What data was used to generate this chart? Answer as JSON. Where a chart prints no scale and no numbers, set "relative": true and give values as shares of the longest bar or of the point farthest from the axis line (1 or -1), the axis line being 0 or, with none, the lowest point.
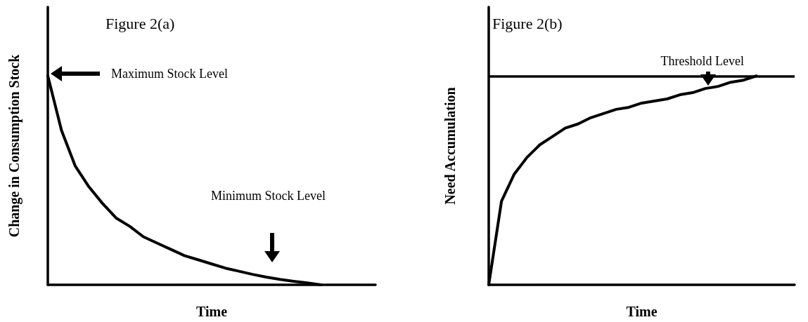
{
  "chart_data": [
    {
      "type": "line",
      "relative": true,
      "xlabel": "Time",
      "ylabel": "Change in Consumption Stock",
      "annotations": [
        "Figure 2(a)",
        "Maximum Stock Level",
        "Minimum Stock Level"
      ],
      "categories": [
        null,
        null,
        null,
        null,
        null,
        null,
        null,
        null,
        null,
        null,
        null,
        null,
        null,
        null,
        null,
        null,
        null,
        null,
        null,
        null,
        null,
        null,
        null,
        null,
        null
      ],
      "series": [
        {
          "color": "#000000",
          "values": [
            1.0,
            0.74,
            0.57,
            0.47,
            0.39,
            0.32,
            0.28,
            0.23,
            0.2,
            0.17,
            0.14,
            0.12,
            0.1,
            0.08,
            0.065,
            0.05,
            0.037,
            0.026,
            0.017,
            0.009,
            0,
            null,
            null,
            null,
            null
          ]
        }
      ],
      "marker": "none",
      "line_style": "solid",
      "grid": false
    },
    {
      "type": "line",
      "relative": true,
      "xlabel": "Time",
      "ylabel": "Need Accumulation",
      "annotations": [
        "Figure 2(b)"
      ],
      "categories": [
        null,
        null,
        null,
        null,
        null,
        null,
        null,
        null,
        null,
        null,
        null,
        null,
        null,
        null,
        null,
        null,
        null,
        null,
        null,
        null,
        null,
        null,
        null,
        null,
        null
      ],
      "series": [
        {
          "color": "#000000",
          "values": [
            0,
            0.4,
            0.53,
            0.61,
            0.67,
            0.71,
            0.75,
            0.77,
            0.8,
            0.82,
            0.84,
            0.85,
            0.87,
            0.88,
            0.89,
            0.91,
            0.92,
            0.94,
            0.95,
            0.97,
            0.98,
            1.0,
            null,
            null,
            null
          ]
        }
      ],
      "ref_lines": [
        {
          "axis": "y",
          "value": 1.0,
          "label": "Threshold Level",
          "color": "#000000"
        }
      ],
      "marker": "none",
      "line_style": "solid",
      "grid": false
    }
  ]
}
